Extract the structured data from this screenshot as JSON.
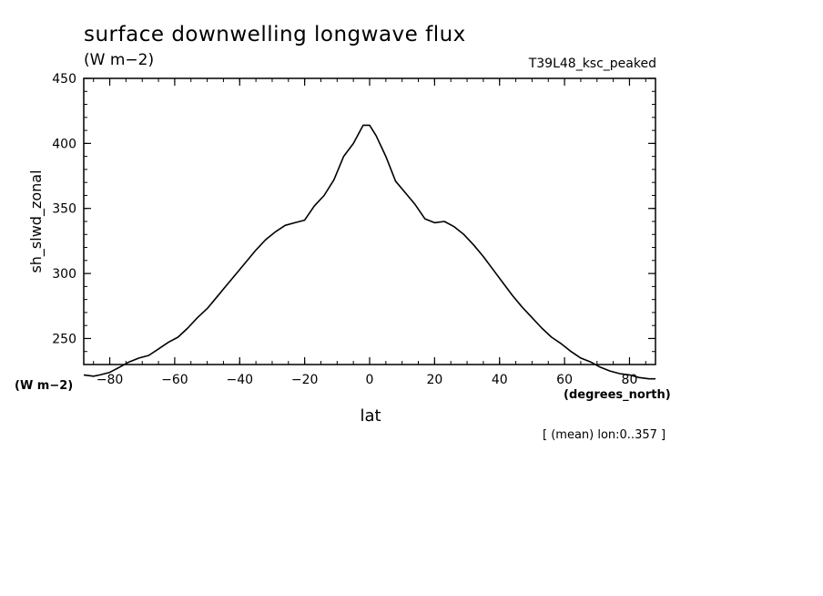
{
  "title": "surface downwelling longwave flux",
  "units_label": "(W m−2)",
  "experiment": "T39L48_ksc_peaked",
  "footnote": "[ (mean) lon:0..357 ]",
  "chart_data": {
    "type": "line",
    "xlabel": "lat",
    "x_units": "(degrees_north)",
    "ylabel": "sh_slwd_zonal",
    "y_units": "(W m−2)",
    "xlim": [
      -88,
      88
    ],
    "ylim": [
      230,
      450
    ],
    "x_ticks": [
      -80,
      -60,
      -40,
      -20,
      0,
      20,
      40,
      60,
      80
    ],
    "y_ticks": [
      250,
      300,
      350,
      400,
      450
    ],
    "series": [
      {
        "x": [
          -88,
          -85,
          -83,
          -80,
          -77,
          -74,
          -71,
          -68,
          -65,
          -62,
          -59,
          -56,
          -53,
          -50,
          -47,
          -44,
          -41,
          -38,
          -35,
          -32,
          -29,
          -26,
          -23,
          -20,
          -17,
          -14,
          -11,
          -8,
          -5,
          -2,
          0,
          2,
          5,
          8,
          11,
          14,
          17,
          20,
          23,
          26,
          29,
          32,
          35,
          38,
          41,
          44,
          47,
          50,
          53,
          56,
          59,
          62,
          65,
          68,
          71,
          74,
          77,
          80,
          83,
          86,
          88
        ],
        "y": [
          222,
          221,
          222,
          224,
          228,
          232,
          235,
          237,
          242,
          247,
          251,
          258,
          266,
          273,
          282,
          291,
          300,
          309,
          318,
          326,
          332,
          337,
          339,
          341,
          352,
          360,
          372,
          390,
          400,
          414,
          414,
          406,
          390,
          371,
          362,
          353,
          342,
          339,
          340,
          336,
          330,
          322,
          313,
          303,
          293,
          283,
          274,
          266,
          258,
          251,
          246,
          240,
          235,
          232,
          228,
          225,
          223,
          222,
          220,
          219,
          219
        ]
      }
    ]
  }
}
